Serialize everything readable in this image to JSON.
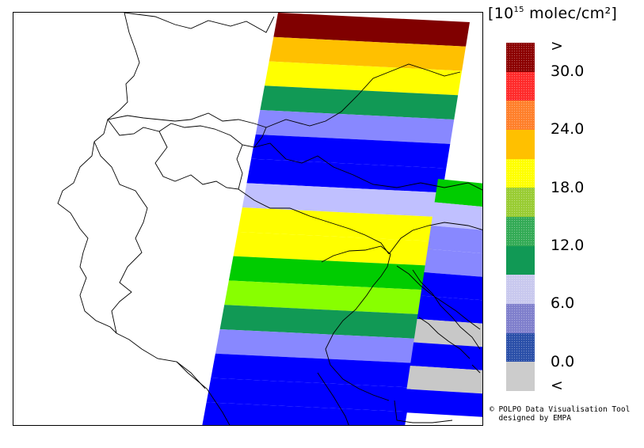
{
  "legend": {
    "unit_prefix": "[10",
    "unit_exponent": "15",
    "unit_suffix": " molec/cm²]",
    "labels": [
      ">",
      "30.0",
      "24.0",
      "18.0",
      "12.0",
      "6.0",
      "0.0",
      "<"
    ],
    "colors": [
      "#8b0000",
      "#ff2a2a",
      "#ff7f2a",
      "#ffc000",
      "#ffff00",
      "#99cc33",
      "#33aa55",
      "#119955",
      "#c8c8ee",
      "#7f7fcc",
      "#2a4fa8",
      "#cccccc"
    ],
    "swatches": [
      "dotted",
      "dotted",
      "dotted",
      "solid",
      "dotted",
      "dotted",
      "dotted",
      "solid",
      "dotted",
      "dotted",
      "dotted",
      "solid"
    ]
  },
  "credits": {
    "line1": "© POLPO Data Visualisation Tool",
    "line2": "  designed by EMPA"
  },
  "map": {
    "swath_rows": [
      {
        "color": "#800000"
      },
      {
        "color": "#ffc000"
      },
      {
        "color": "#ffff00"
      },
      {
        "color": "#119955"
      },
      {
        "color": "#8888ff"
      },
      {
        "color": "#0000ff"
      },
      {
        "color": "#0000ff"
      },
      {
        "color": "#c0c0ff"
      },
      {
        "color": "#ffff00"
      },
      {
        "color": "#ffff00"
      },
      {
        "color": "#00cc00"
      },
      {
        "color": "#88ff00"
      },
      {
        "color": "#119955"
      },
      {
        "color": "#8888ff"
      },
      {
        "color": "#0000ff"
      },
      {
        "color": "#0000ff"
      },
      {
        "color": "#0000ff"
      }
    ],
    "east_swath_rows": [
      {
        "color": "#00cc00"
      },
      {
        "color": "#c0c0ff"
      },
      {
        "color": "#8888ff"
      },
      {
        "color": "#8888ff"
      },
      {
        "color": "#0000ff"
      },
      {
        "color": "#0000ff"
      },
      {
        "color": "#c8c8c8"
      },
      {
        "color": "#0000ff"
      },
      {
        "color": "#c8c8c8"
      },
      {
        "color": "#0000ff"
      }
    ]
  }
}
